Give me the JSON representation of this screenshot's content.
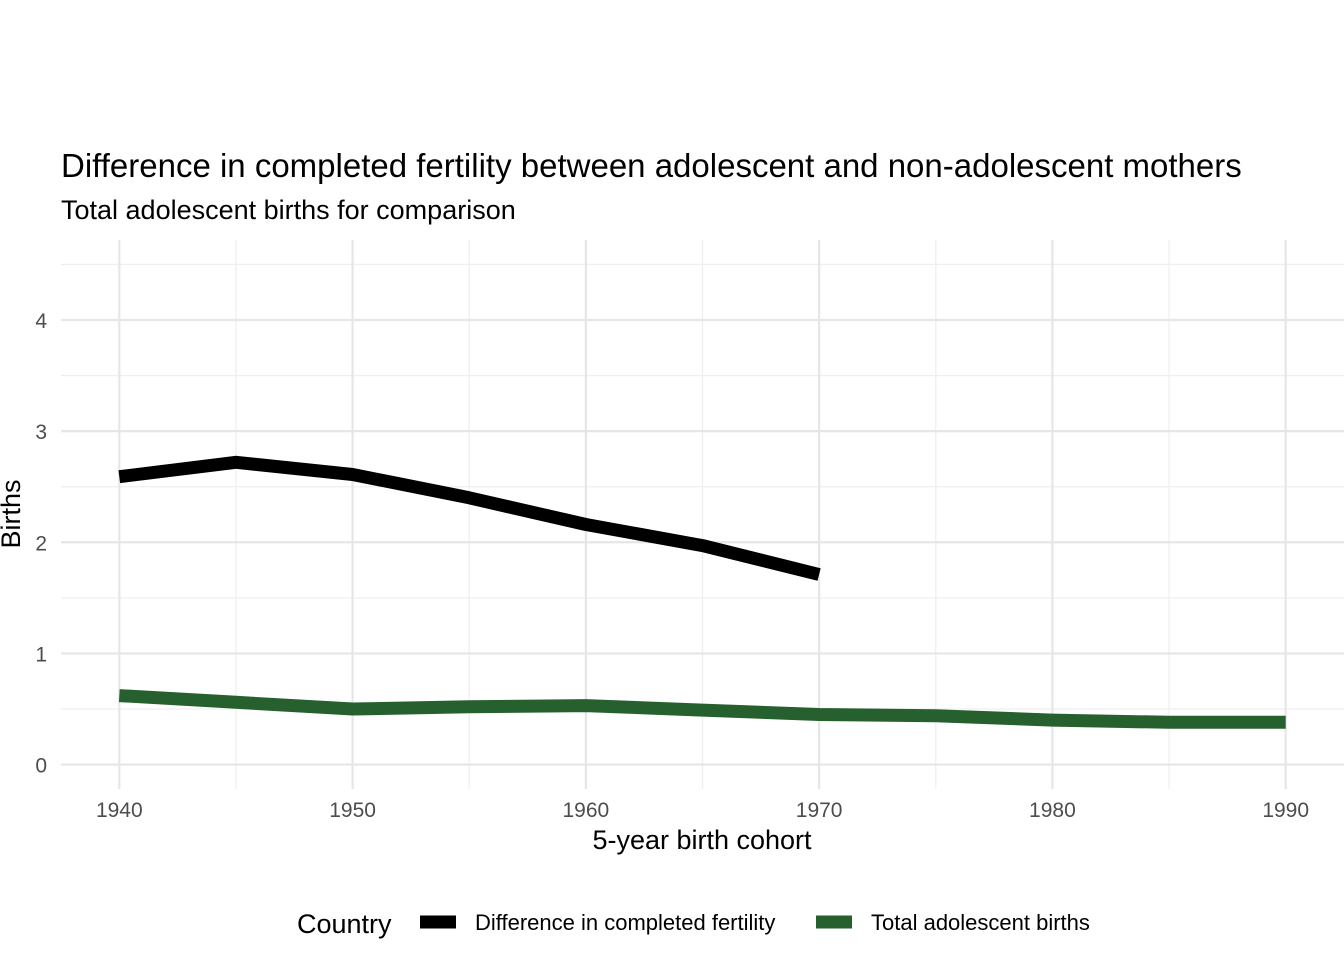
{
  "chart_data": {
    "type": "line",
    "title": "Difference in completed fertility between adolescent and non-adolescent mothers",
    "subtitle": "Total adolescent births for comparison",
    "xlabel": "5-year birth cohort",
    "ylabel": "Births",
    "xlim": [
      1937.5,
      1992.5
    ],
    "ylim": [
      -0.22,
      4.72
    ],
    "x_ticks": [
      1940,
      1950,
      1960,
      1970,
      1980,
      1990
    ],
    "x_minor": [
      1945,
      1955,
      1965,
      1975,
      1985
    ],
    "y_ticks": [
      0,
      1,
      2,
      3,
      4
    ],
    "y_minor": [
      0.5,
      1.5,
      2.5,
      3.5,
      4.5
    ],
    "grid": true,
    "legend": {
      "title": "Country",
      "position": "bottom"
    },
    "series": [
      {
        "name": "Difference in completed fertility",
        "color": "#000000",
        "x": [
          1940,
          1945,
          1950,
          1955,
          1960,
          1965,
          1970
        ],
        "y": [
          2.59,
          2.72,
          2.61,
          2.4,
          2.16,
          1.97,
          1.71
        ]
      },
      {
        "name": "Total adolescent births",
        "color": "#27602f",
        "x": [
          1940,
          1945,
          1950,
          1955,
          1960,
          1965,
          1970,
          1975,
          1980,
          1985,
          1990
        ],
        "y": [
          0.62,
          0.56,
          0.5,
          0.52,
          0.53,
          0.49,
          0.45,
          0.44,
          0.4,
          0.38,
          0.38
        ]
      }
    ]
  }
}
